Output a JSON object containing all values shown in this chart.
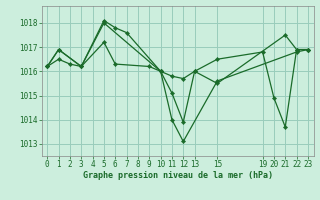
{
  "background_color": "#cceedd",
  "grid_color": "#99ccbb",
  "line_color": "#1a6b2a",
  "marker_color": "#1a6b2a",
  "title": "Graphe pression niveau de la mer (hPa)",
  "ylim": [
    1012.5,
    1018.7
  ],
  "yticks": [
    1013,
    1014,
    1015,
    1016,
    1017,
    1018
  ],
  "xlim": [
    -0.5,
    23.5
  ],
  "xtick_positions": [
    0,
    1,
    2,
    3,
    4,
    5,
    6,
    7,
    8,
    9,
    10,
    11,
    12,
    13,
    15,
    19,
    20,
    21,
    22,
    23
  ],
  "xtick_labels": [
    "0",
    "1",
    "2",
    "3",
    "4",
    "5",
    "6",
    "7",
    "8",
    "9",
    "10",
    "11",
    "12",
    "13",
    "15",
    "19",
    "20",
    "21",
    "22",
    "23"
  ],
  "series": [
    {
      "x": [
        0,
        1,
        3,
        5,
        6,
        7,
        10,
        11,
        12,
        13,
        15,
        21,
        22,
        23
      ],
      "y": [
        1016.2,
        1016.9,
        1016.2,
        1018.1,
        1017.8,
        1017.6,
        1016.0,
        1015.1,
        1013.9,
        1016.0,
        1015.5,
        1017.5,
        1016.9,
        1016.9
      ]
    },
    {
      "x": [
        0,
        1,
        3,
        5,
        10,
        11,
        12,
        15,
        22,
        23
      ],
      "y": [
        1016.2,
        1016.9,
        1016.2,
        1018.0,
        1016.0,
        1014.0,
        1013.1,
        1015.6,
        1016.8,
        1016.9
      ]
    },
    {
      "x": [
        0,
        1,
        2,
        3,
        5,
        6,
        9,
        10,
        11,
        12,
        13,
        15,
        19,
        20,
        21,
        22,
        23
      ],
      "y": [
        1016.2,
        1016.5,
        1016.3,
        1016.2,
        1017.2,
        1016.3,
        1016.2,
        1016.0,
        1015.8,
        1015.7,
        1016.0,
        1016.5,
        1016.8,
        1014.9,
        1013.7,
        1016.9,
        1016.9
      ]
    }
  ],
  "title_fontsize": 6.0,
  "tick_fontsize": 5.5,
  "linewidth": 0.9,
  "markersize": 2.2
}
